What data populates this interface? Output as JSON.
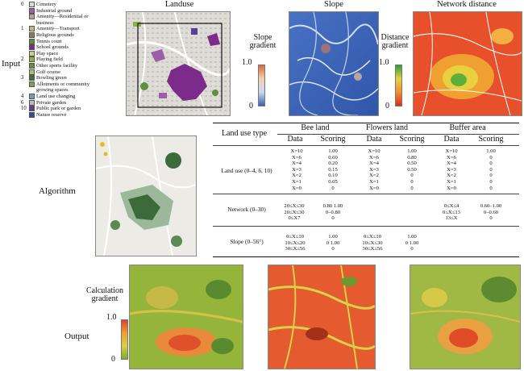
{
  "rows": {
    "input": "Input",
    "algorithm": "Algorithm",
    "output": "Output"
  },
  "titles": {
    "landuse": "Landuse",
    "slope": "Slope",
    "network": "Network distance"
  },
  "legend": [
    {
      "num": "0",
      "label": "Cemetery",
      "color": "#d9d9d9"
    },
    {
      "num": "",
      "label": "Industrial ground",
      "color": "#9c5ea8"
    },
    {
      "num": "",
      "label": "Amenity—Residential or",
      "color": "#b8a78b"
    },
    {
      "num": "",
      "label": "business",
      "color": ""
    },
    {
      "num": "1",
      "label": "Amenity—Transport",
      "color": "#c7b57c"
    },
    {
      "num": "",
      "label": "Religious grounds",
      "color": "#8a7b5a"
    },
    {
      "num": "",
      "label": "Tennis court",
      "color": "#5f8f3e"
    },
    {
      "num": "",
      "label": "School grounds",
      "color": "#7c2b8a"
    },
    {
      "num": "",
      "label": "Play space",
      "color": "#c9d38a"
    },
    {
      "num": "2",
      "label": "Playing field",
      "color": "#8db04a"
    },
    {
      "num": "",
      "label": "Other sports facility",
      "color": "#6b8d3b"
    },
    {
      "num": "",
      "label": "Golf course",
      "color": "#a8c06a"
    },
    {
      "num": "3",
      "label": "Bowling green",
      "color": "#3f6f3a"
    },
    {
      "num": "",
      "label": "Allotments or community",
      "color": "#7fa05a"
    },
    {
      "num": "",
      "label": "growing spaces",
      "color": ""
    },
    {
      "num": "4",
      "label": "Land use changing",
      "color": "#6ca0c9"
    },
    {
      "num": "6",
      "label": "Private garden",
      "color": "#bbbbbb"
    },
    {
      "num": "10",
      "label": "Public park or garden",
      "color": "#5a3f9a"
    },
    {
      "num": "",
      "label": "Nature reserve",
      "color": "#2d4f9a"
    }
  ],
  "legends_grad": {
    "slope": {
      "label": "Slope gradient",
      "max": "1.0",
      "min": "0"
    },
    "distance": {
      "label": "Distance gradient",
      "max": "1.0",
      "min": "0"
    },
    "calc": {
      "label": "Calculation gradient",
      "max": "1.0",
      "min": "0"
    }
  },
  "colors": {
    "slope_top": "#e0683a",
    "slope_bottom": "#3a5fb0",
    "dist_top": "#2e9e3a",
    "dist_bottom": "#e02a1a",
    "calc_top": "#e0402a",
    "calc_bottom": "#7aaf2a"
  },
  "table": {
    "land_use_type": "Land use type",
    "groups": [
      "Bee land",
      "Flowers land",
      "Buffer area"
    ],
    "data": "Data",
    "scoring": "Scoring",
    "landuse_label": "Land use (0–4, 6, 10)",
    "network_label": "Network (0–30)",
    "slope_label": "Slope (0–56°)",
    "bee_lu_data": [
      "X=10",
      "X=6",
      "X=4",
      "X=3",
      "X=2",
      "X=1",
      "X=0"
    ],
    "bee_lu_score": [
      "1.00",
      "0.60",
      "0.20",
      "0.15",
      "0.10",
      "0.05",
      "0"
    ],
    "fl_lu_data": [
      "X=10",
      "X=6",
      "X=4",
      "X=3",
      "X=2",
      "X=1",
      "X=0"
    ],
    "fl_lu_score": [
      "1.00",
      "0.80",
      "0.50",
      "0.50",
      "0",
      "0",
      "0"
    ],
    "buf_lu_data": [
      "X=10",
      "X=6",
      "X=4",
      "X=3",
      "X=2",
      "X=1",
      "X=0"
    ],
    "buf_lu_score": [
      "1.00",
      "0",
      "0",
      "0",
      "0",
      "0",
      "0"
    ],
    "bee_net_data": [
      "20≤X≤30",
      "20≤X≤30",
      "0≤X7"
    ],
    "bee_net_score": [
      "0.80 1.00",
      "0–0.80",
      "0"
    ],
    "buf_net_data": [
      "0≤X≤4",
      "0≤X≤13",
      "13≤X"
    ],
    "buf_net_score": [
      "0.60–1.00",
      "0–0.60",
      "0"
    ],
    "bee_sl_data": [
      "0≤X≤10",
      "10≤X≤20",
      "30≤X≤56"
    ],
    "bee_sl_score": [
      "1.00",
      "0 1.00",
      "0"
    ],
    "fl_sl_data": [
      "0≤X≤10",
      "10≤X≤30",
      "30≤X≤56"
    ],
    "fl_sl_score": [
      "1.00",
      "0 1.00",
      "0"
    ]
  }
}
